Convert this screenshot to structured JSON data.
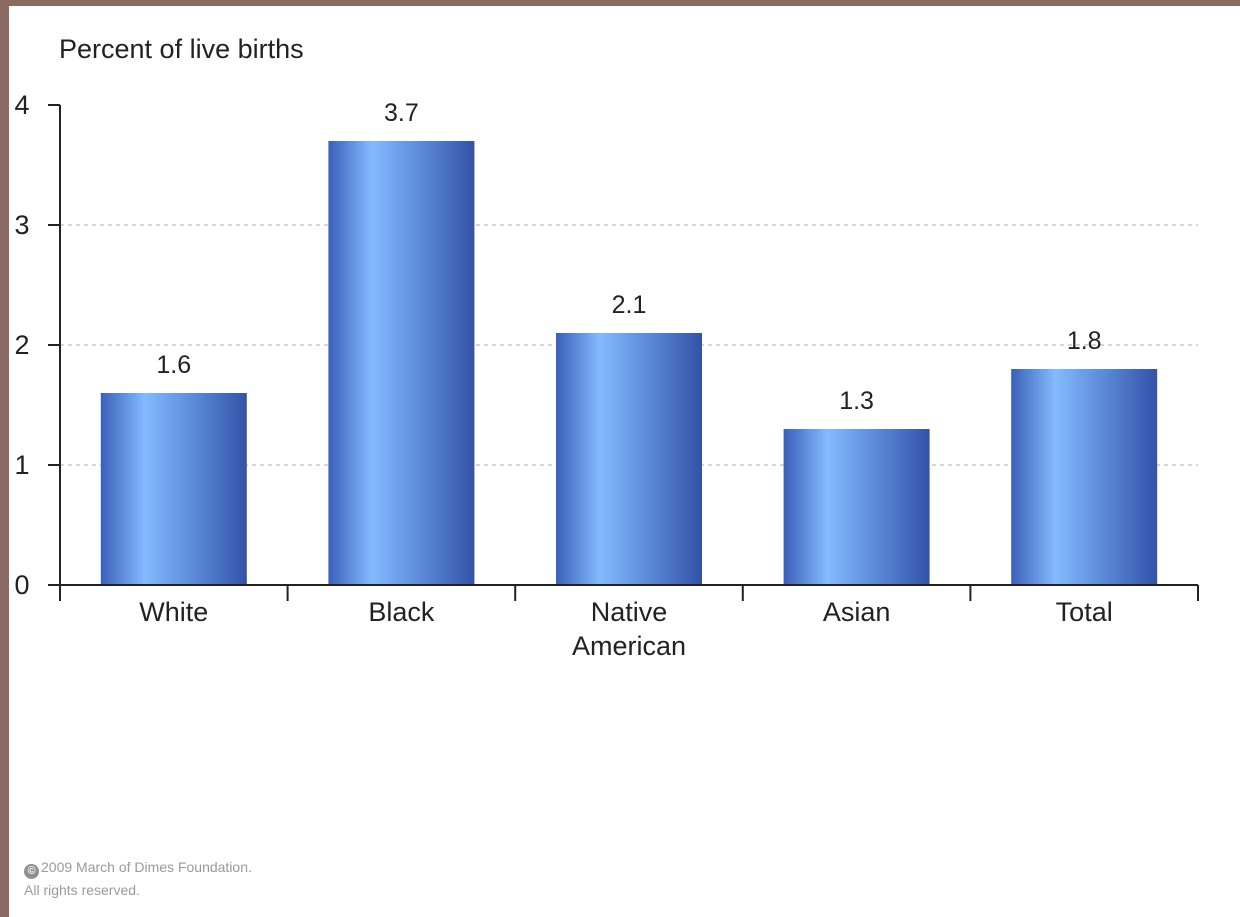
{
  "chart_data": {
    "type": "bar",
    "ylabel": "Percent of live births",
    "categories": [
      [
        "White"
      ],
      [
        "Black"
      ],
      [
        "Native",
        "American"
      ],
      [
        "Asian"
      ],
      [
        "Total"
      ]
    ],
    "values": [
      1.6,
      3.7,
      2.1,
      1.3,
      1.8
    ],
    "data_labels": [
      "1.6",
      "3.7",
      "2.1",
      "1.3",
      "1.8"
    ],
    "ylim": [
      0,
      4
    ],
    "yticks": [
      "0",
      "1",
      "2",
      "3",
      "4"
    ],
    "grid": "dashed horizontal",
    "bar_color": "#4a73c9"
  },
  "footer": {
    "copyright_symbol": "©",
    "line1": "2009 March of Dimes Foundation.",
    "line2": "All rights reserved."
  }
}
